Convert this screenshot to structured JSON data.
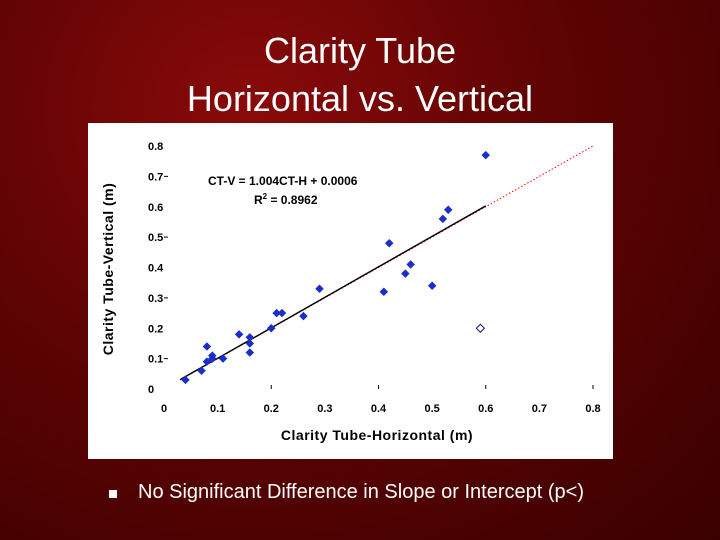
{
  "slide": {
    "title_line1": "Clarity Tube",
    "title_line2": "Horizontal vs. Vertical",
    "bullet_text": "No Significant Difference in Slope or Intercept (p<)",
    "colors": {
      "background": "#5e0303",
      "text": "#ffffff",
      "points": "#1a2ecc",
      "regression": "#000000",
      "identity_line": "#ff0000"
    }
  },
  "chart_data": {
    "type": "scatter",
    "xlabel": "Clarity Tube-Horizontal (m)",
    "ylabel": "Clarity Tube-Vertical (m)",
    "xlim": [
      0,
      0.8
    ],
    "ylim": [
      0,
      0.8
    ],
    "x_ticks": [
      "0",
      "0.1",
      "0.2",
      "0.3",
      "0.4",
      "0.5",
      "0.6",
      "0.7",
      "0.8"
    ],
    "y_ticks": [
      "0",
      "0.1",
      "0.2",
      "0.3",
      "0.4",
      "0.5",
      "0.6",
      "0.7",
      "0.8"
    ],
    "grid": false,
    "equation": "CT-V = 1.004CT-H + 0.0006",
    "r2_label": "R",
    "r2_sup": "2",
    "r2_value": " = 0.8962",
    "regression": {
      "slope": 1.004,
      "intercept": 0.0006,
      "x_range": [
        0.03,
        0.6
      ]
    },
    "identity_line": {
      "x_range": [
        0.03,
        0.8
      ],
      "style": "dotted"
    },
    "series": [
      {
        "marker": "filled-diamond",
        "points": [
          [
            0.04,
            0.03
          ],
          [
            0.07,
            0.06
          ],
          [
            0.08,
            0.09
          ],
          [
            0.08,
            0.14
          ],
          [
            0.09,
            0.1
          ],
          [
            0.09,
            0.11
          ],
          [
            0.11,
            0.1
          ],
          [
            0.14,
            0.18
          ],
          [
            0.16,
            0.17
          ],
          [
            0.16,
            0.15
          ],
          [
            0.16,
            0.12
          ],
          [
            0.2,
            0.2
          ],
          [
            0.21,
            0.25
          ],
          [
            0.22,
            0.25
          ],
          [
            0.26,
            0.24
          ],
          [
            0.29,
            0.33
          ],
          [
            0.41,
            0.32
          ],
          [
            0.42,
            0.48
          ],
          [
            0.45,
            0.38
          ],
          [
            0.46,
            0.41
          ],
          [
            0.5,
            0.34
          ],
          [
            0.52,
            0.56
          ],
          [
            0.53,
            0.59
          ],
          [
            0.6,
            0.77
          ]
        ]
      },
      {
        "marker": "open-diamond",
        "points": [
          [
            0.59,
            0.2
          ]
        ]
      }
    ]
  }
}
